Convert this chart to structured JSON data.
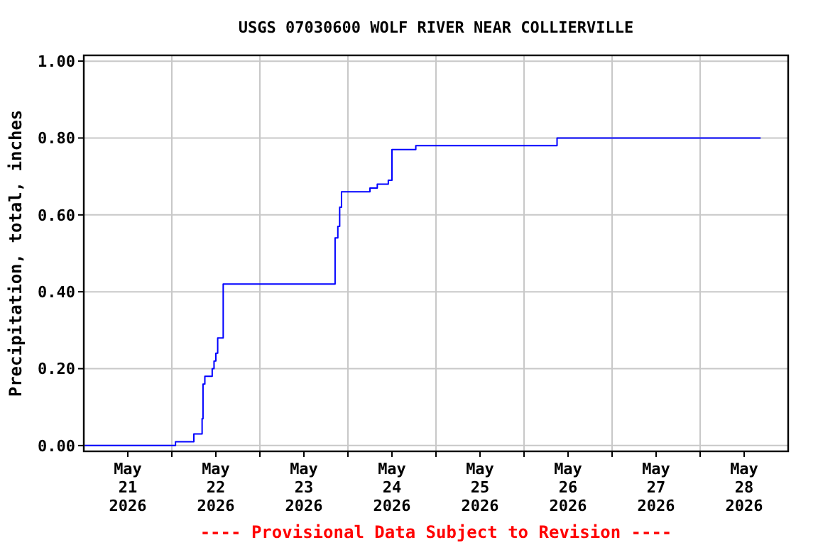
{
  "chart_data": {
    "type": "step",
    "title": "USGS 07030600 WOLF RIVER NEAR COLLIERVILLE",
    "ylabel": "Precipitation, total, inches",
    "annotations": [
      "---- Provisional Data Subject to Revision ----"
    ],
    "x": [
      "2026-05-21T00:15",
      "2026-05-22T01:00",
      "2026-05-22T06:00",
      "2026-05-22T08:15",
      "2026-05-22T08:30",
      "2026-05-22T09:00",
      "2026-05-22T11:00",
      "2026-05-22T11:30",
      "2026-05-22T12:00",
      "2026-05-22T12:30",
      "2026-05-22T14:00",
      "2026-05-23T20:30",
      "2026-05-23T21:15",
      "2026-05-23T21:45",
      "2026-05-23T22:15",
      "2026-05-24T06:00",
      "2026-05-24T08:00",
      "2026-05-24T11:00",
      "2026-05-24T12:00",
      "2026-05-24T18:30",
      "2026-05-26T09:00",
      "2026-05-28T16:30"
    ],
    "series": [
      {
        "color": "#0000ff",
        "values": [
          0.0,
          0.01,
          0.03,
          0.07,
          0.16,
          0.18,
          0.2,
          0.22,
          0.24,
          0.28,
          0.42,
          0.54,
          0.57,
          0.62,
          0.66,
          0.67,
          0.68,
          0.69,
          0.77,
          0.78,
          0.8,
          0.8
        ]
      }
    ],
    "xlim": [
      "2026-05-21T00:00",
      "2026-05-29T00:00"
    ],
    "xticks": [
      {
        "value": "2026-05-21T12:00",
        "label": "May 21 2026"
      },
      {
        "value": "2026-05-22T00:00",
        "label": null
      },
      {
        "value": "2026-05-22T12:00",
        "label": "May 22 2026"
      },
      {
        "value": "2026-05-23T00:00",
        "label": null
      },
      {
        "value": "2026-05-23T12:00",
        "label": "May 23 2026"
      },
      {
        "value": "2026-05-24T00:00",
        "label": null
      },
      {
        "value": "2026-05-24T12:00",
        "label": "May 24 2026"
      },
      {
        "value": "2026-05-25T00:00",
        "label": null
      },
      {
        "value": "2026-05-25T12:00",
        "label": "May 25 2026"
      },
      {
        "value": "2026-05-26T00:00",
        "label": null
      },
      {
        "value": "2026-05-26T12:00",
        "label": "May 26 2026"
      },
      {
        "value": "2026-05-27T00:00",
        "label": null
      },
      {
        "value": "2026-05-27T12:00",
        "label": "May 27 2026"
      },
      {
        "value": "2026-05-28T00:00",
        "label": null
      },
      {
        "value": "2026-05-28T12:00",
        "label": "May 28 2026"
      }
    ],
    "ylim": [
      -0.015,
      1.015
    ],
    "yticks": [
      {
        "value": 0,
        "label": "0.00"
      },
      {
        "value": 0.2,
        "label": "0.20"
      },
      {
        "value": 0.4,
        "label": "0.40"
      },
      {
        "value": 0.6,
        "label": "0.60"
      },
      {
        "value": 0.8,
        "label": "0.80"
      },
      {
        "value": 1,
        "label": "1.00"
      }
    ],
    "grid": true
  }
}
